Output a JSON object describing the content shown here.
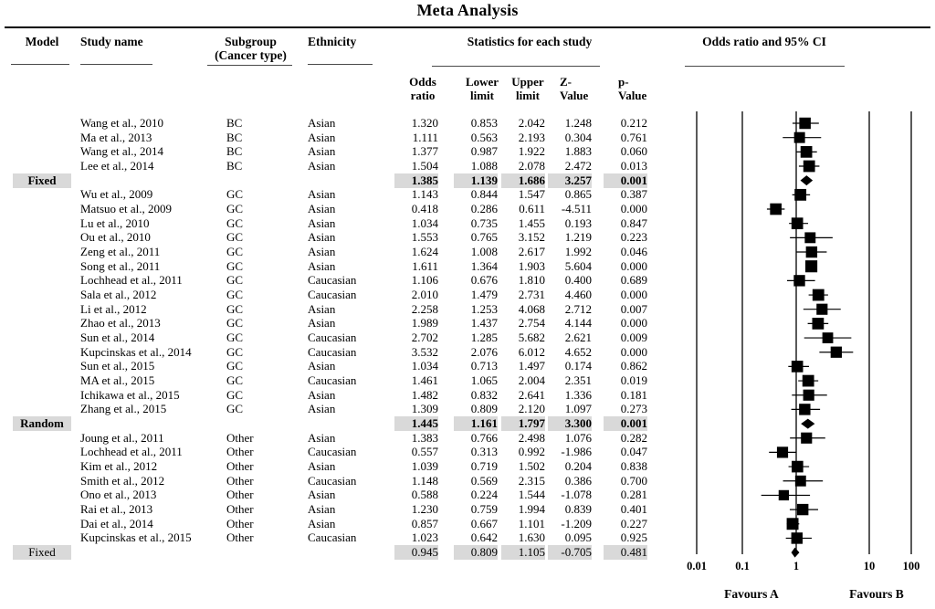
{
  "title": "Meta Analysis",
  "columns": {
    "model": "Model",
    "study": "Study name",
    "subgroup_line1": "Subgroup",
    "subgroup_line2": "(Cancer type)",
    "ethnicity": "Ethnicity",
    "stats_group": "Statistics for each study",
    "plot_group": "Odds ratio and 95% CI",
    "odds_line1": "Odds",
    "odds_line2": "ratio",
    "lower_line1": "Lower",
    "lower_line2": "limit",
    "upper_line1": "Upper",
    "upper_line2": "limit",
    "z_line1": "Z-",
    "z_line2": "Value",
    "p_line1": "p-",
    "p_line2": "Value"
  },
  "colors": {
    "highlight": "#d9d9d9",
    "marker": "#000000",
    "rule": "#000000"
  },
  "axis": {
    "tick_labels": [
      "0.01",
      "0.1",
      "1",
      "10",
      "100"
    ],
    "favours_left": "Favours A",
    "favours_right": "Favours B"
  },
  "chart_data": {
    "type": "table",
    "subtype": "forest-plot",
    "title": "Meta Analysis",
    "x_scale": "log",
    "x_ticks": [
      0.01,
      0.1,
      1,
      10,
      100
    ],
    "legend_footer": [
      "Favours A",
      "Favours B"
    ],
    "rows": [
      {
        "kind": "study",
        "model": "",
        "study": "Wang et al., 2010",
        "subgroup": "BC",
        "ethnicity": "Asian",
        "or": "1.320",
        "lower": "0.853",
        "upper": "2.042",
        "z": "1.248",
        "p": "0.212"
      },
      {
        "kind": "study",
        "model": "",
        "study": "Ma et al., 2013",
        "subgroup": "BC",
        "ethnicity": "Asian",
        "or": "1.111",
        "lower": "0.563",
        "upper": "2.193",
        "z": "0.304",
        "p": "0.761"
      },
      {
        "kind": "study",
        "model": "",
        "study": "Wang et al., 2014",
        "subgroup": "BC",
        "ethnicity": "Asian",
        "or": "1.377",
        "lower": "0.987",
        "upper": "1.922",
        "z": "1.883",
        "p": "0.060"
      },
      {
        "kind": "study",
        "model": "",
        "study": "Lee et al., 2014",
        "subgroup": "BC",
        "ethnicity": "Asian",
        "or": "1.504",
        "lower": "1.088",
        "upper": "2.078",
        "z": "2.472",
        "p": "0.013"
      },
      {
        "kind": "summary",
        "bold": true,
        "model": "Fixed",
        "study": "",
        "subgroup": "",
        "ethnicity": "",
        "or": "1.385",
        "lower": "1.139",
        "upper": "1.686",
        "z": "3.257",
        "p": "0.001"
      },
      {
        "kind": "study",
        "model": "",
        "study": "Wu et al., 2009",
        "subgroup": "GC",
        "ethnicity": "Asian",
        "or": "1.143",
        "lower": "0.844",
        "upper": "1.547",
        "z": "0.865",
        "p": "0.387"
      },
      {
        "kind": "study",
        "model": "",
        "study": "Matsuo et al., 2009",
        "subgroup": "GC",
        "ethnicity": "Asian",
        "or": "0.418",
        "lower": "0.286",
        "upper": "0.611",
        "z": "-4.511",
        "p": "0.000"
      },
      {
        "kind": "study",
        "model": "",
        "study": "Lu et al., 2010",
        "subgroup": "GC",
        "ethnicity": "Asian",
        "or": "1.034",
        "lower": "0.735",
        "upper": "1.455",
        "z": "0.193",
        "p": "0.847"
      },
      {
        "kind": "study",
        "model": "",
        "study": "Ou et al., 2010",
        "subgroup": "GC",
        "ethnicity": "Asian",
        "or": "1.553",
        "lower": "0.765",
        "upper": "3.152",
        "z": "1.219",
        "p": "0.223"
      },
      {
        "kind": "study",
        "model": "",
        "study": "Zeng et al., 2011",
        "subgroup": "GC",
        "ethnicity": "Asian",
        "or": "1.624",
        "lower": "1.008",
        "upper": "2.617",
        "z": "1.992",
        "p": "0.046"
      },
      {
        "kind": "study",
        "model": "",
        "study": "Song et al., 2011",
        "subgroup": "GC",
        "ethnicity": "Asian",
        "or": "1.611",
        "lower": "1.364",
        "upper": "1.903",
        "z": "5.604",
        "p": "0.000"
      },
      {
        "kind": "study",
        "model": "",
        "study": "Lochhead et al., 2011",
        "subgroup": "GC",
        "ethnicity": "Caucasian",
        "or": "1.106",
        "lower": "0.676",
        "upper": "1.810",
        "z": "0.400",
        "p": "0.689"
      },
      {
        "kind": "study",
        "model": "",
        "study": "Sala et al., 2012",
        "subgroup": "GC",
        "ethnicity": "Caucasian",
        "or": "2.010",
        "lower": "1.479",
        "upper": "2.731",
        "z": "4.460",
        "p": "0.000"
      },
      {
        "kind": "study",
        "model": "",
        "study": "Li et al., 2012",
        "subgroup": "GC",
        "ethnicity": "Asian",
        "or": "2.258",
        "lower": "1.253",
        "upper": "4.068",
        "z": "2.712",
        "p": "0.007"
      },
      {
        "kind": "study",
        "model": "",
        "study": "Zhao et al., 2013",
        "subgroup": "GC",
        "ethnicity": "Asian",
        "or": "1.989",
        "lower": "1.437",
        "upper": "2.754",
        "z": "4.144",
        "p": "0.000"
      },
      {
        "kind": "study",
        "model": "",
        "study": "Sun et al., 2014",
        "subgroup": "GC",
        "ethnicity": "Caucasian",
        "or": "2.702",
        "lower": "1.285",
        "upper": "5.682",
        "z": "2.621",
        "p": "0.009"
      },
      {
        "kind": "study",
        "model": "",
        "study": "Kupcinskas et al., 2014",
        "subgroup": "GC",
        "ethnicity": "Caucasian",
        "or": "3.532",
        "lower": "2.076",
        "upper": "6.012",
        "z": "4.652",
        "p": "0.000"
      },
      {
        "kind": "study",
        "model": "",
        "study": "Sun et al., 2015",
        "subgroup": "GC",
        "ethnicity": "Asian",
        "or": "1.034",
        "lower": "0.713",
        "upper": "1.497",
        "z": "0.174",
        "p": "0.862"
      },
      {
        "kind": "study",
        "model": "",
        "study": "MA et al., 2015",
        "subgroup": "GC",
        "ethnicity": "Caucasian",
        "or": "1.461",
        "lower": "1.065",
        "upper": "2.004",
        "z": "2.351",
        "p": "0.019"
      },
      {
        "kind": "study",
        "model": "",
        "study": "Ichikawa et al., 2015",
        "subgroup": "GC",
        "ethnicity": "Asian",
        "or": "1.482",
        "lower": "0.832",
        "upper": "2.641",
        "z": "1.336",
        "p": "0.181"
      },
      {
        "kind": "study",
        "model": "",
        "study": "Zhang et al., 2015",
        "subgroup": "GC",
        "ethnicity": "Asian",
        "or": "1.309",
        "lower": "0.809",
        "upper": "2.120",
        "z": "1.097",
        "p": "0.273"
      },
      {
        "kind": "summary",
        "bold": true,
        "model": "Random",
        "study": "",
        "subgroup": "",
        "ethnicity": "",
        "or": "1.445",
        "lower": "1.161",
        "upper": "1.797",
        "z": "3.300",
        "p": "0.001"
      },
      {
        "kind": "study",
        "model": "",
        "study": "Joung et al., 2011",
        "subgroup": "Other",
        "ethnicity": "Asian",
        "or": "1.383",
        "lower": "0.766",
        "upper": "2.498",
        "z": "1.076",
        "p": "0.282"
      },
      {
        "kind": "study",
        "model": "",
        "study": "Lochhead et al., 2011",
        "subgroup": "Other",
        "ethnicity": "Caucasian",
        "or": "0.557",
        "lower": "0.313",
        "upper": "0.992",
        "z": "-1.986",
        "p": "0.047"
      },
      {
        "kind": "study",
        "model": "",
        "study": "Kim et al., 2012",
        "subgroup": "Other",
        "ethnicity": "Asian",
        "or": "1.039",
        "lower": "0.719",
        "upper": "1.502",
        "z": "0.204",
        "p": "0.838"
      },
      {
        "kind": "study",
        "model": "",
        "study": "Smith et al., 2012",
        "subgroup": "Other",
        "ethnicity": "Caucasian",
        "or": "1.148",
        "lower": "0.569",
        "upper": "2.315",
        "z": "0.386",
        "p": "0.700"
      },
      {
        "kind": "study",
        "model": "",
        "study": "Ono et al., 2013",
        "subgroup": "Other",
        "ethnicity": "Asian",
        "or": "0.588",
        "lower": "0.224",
        "upper": "1.544",
        "z": "-1.078",
        "p": "0.281"
      },
      {
        "kind": "study",
        "model": "",
        "study": "Rai et al., 2013",
        "subgroup": "Other",
        "ethnicity": "Asian",
        "or": "1.230",
        "lower": "0.759",
        "upper": "1.994",
        "z": "0.839",
        "p": "0.401"
      },
      {
        "kind": "study",
        "model": "",
        "study": "Dai et al., 2014",
        "subgroup": "Other",
        "ethnicity": "Asian",
        "or": "0.857",
        "lower": "0.667",
        "upper": "1.101",
        "z": "-1.209",
        "p": "0.227"
      },
      {
        "kind": "study",
        "model": "",
        "study": "Kupcinskas et al., 2015",
        "subgroup": "Other",
        "ethnicity": "Caucasian",
        "or": "1.023",
        "lower": "0.642",
        "upper": "1.630",
        "z": "0.095",
        "p": "0.925"
      },
      {
        "kind": "summary",
        "bold": false,
        "model": "Fixed",
        "study": "",
        "subgroup": "",
        "ethnicity": "",
        "or": "0.945",
        "lower": "0.809",
        "upper": "1.105",
        "z": "-0.705",
        "p": "0.481"
      }
    ]
  }
}
